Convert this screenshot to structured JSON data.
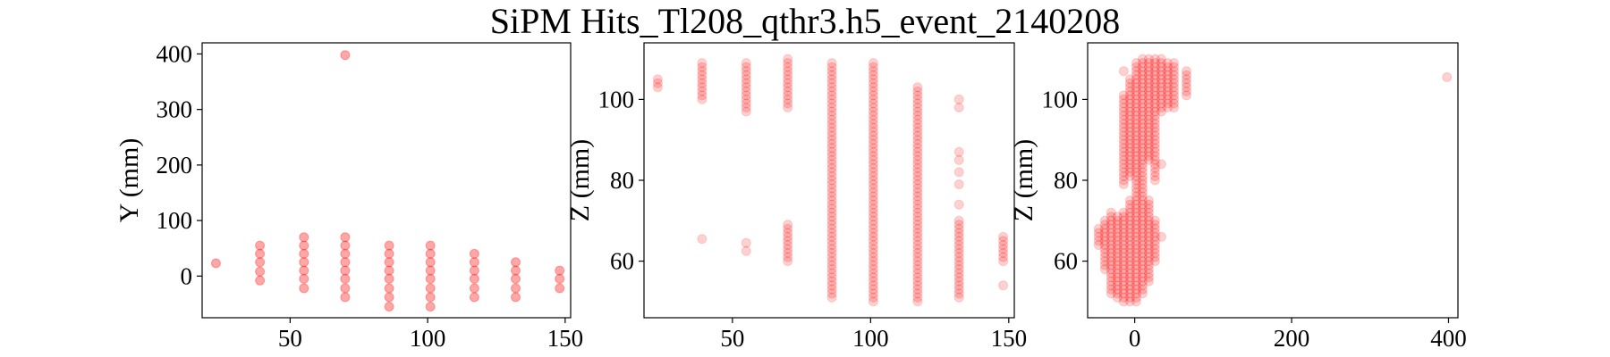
{
  "chart_data": {
    "title": "SiPM Hits_Tl208_qthr3.h5_event_2140208",
    "marker_color": "#ff0000",
    "panels": [
      {
        "type": "scatter",
        "xlabel": "",
        "ylabel": "Y (mm)",
        "xlim": [
          18,
          152
        ],
        "ylim": [
          -75,
          420
        ],
        "xticks": [
          50,
          100,
          150
        ],
        "yticks": [
          0,
          100,
          200,
          300,
          400
        ],
        "alpha": 0.35,
        "points": [
          [
            23,
            23
          ],
          [
            39,
            55
          ],
          [
            39,
            40
          ],
          [
            39,
            25
          ],
          [
            39,
            8
          ],
          [
            39,
            -8
          ],
          [
            55,
            70
          ],
          [
            55,
            55
          ],
          [
            55,
            40
          ],
          [
            55,
            25
          ],
          [
            55,
            10
          ],
          [
            55,
            -5
          ],
          [
            55,
            -22
          ],
          [
            70,
            398
          ],
          [
            70,
            70
          ],
          [
            70,
            55
          ],
          [
            70,
            40
          ],
          [
            70,
            25
          ],
          [
            70,
            10
          ],
          [
            70,
            -5
          ],
          [
            70,
            -22
          ],
          [
            70,
            -38
          ],
          [
            86,
            55
          ],
          [
            86,
            40
          ],
          [
            86,
            25
          ],
          [
            86,
            10
          ],
          [
            86,
            -5
          ],
          [
            86,
            -22
          ],
          [
            86,
            -38
          ],
          [
            86,
            -55
          ],
          [
            101,
            55
          ],
          [
            101,
            40
          ],
          [
            101,
            25
          ],
          [
            101,
            10
          ],
          [
            101,
            -5
          ],
          [
            101,
            -22
          ],
          [
            101,
            -38
          ],
          [
            101,
            -55
          ],
          [
            117,
            40
          ],
          [
            117,
            25
          ],
          [
            117,
            10
          ],
          [
            117,
            -5
          ],
          [
            117,
            -22
          ],
          [
            117,
            -38
          ],
          [
            132,
            25
          ],
          [
            132,
            10
          ],
          [
            132,
            -5
          ],
          [
            132,
            -22
          ],
          [
            132,
            -38
          ],
          [
            148,
            10
          ],
          [
            148,
            -5
          ],
          [
            148,
            -22
          ]
        ]
      },
      {
        "type": "scatter",
        "xlabel": "",
        "ylabel": "Z (mm)",
        "xlim": [
          18,
          152
        ],
        "ylim": [
          46,
          114
        ],
        "xticks": [
          50,
          100,
          150
        ],
        "yticks": [
          60,
          80,
          100
        ],
        "alpha": 0.18,
        "columns": [
          {
            "x": 23,
            "ranges": [
              [
                103,
                105
              ]
            ]
          },
          {
            "x": 39,
            "ranges": [
              [
                100,
                109
              ]
            ],
            "extra": [
              65.5
            ]
          },
          {
            "x": 55,
            "ranges": [
              [
                97,
                109
              ]
            ],
            "extra": [
              64.5,
              62.5
            ]
          },
          {
            "x": 70,
            "ranges": [
              [
                98,
                110
              ],
              [
                60,
                69
              ]
            ]
          },
          {
            "x": 86,
            "ranges": [
              [
                51,
                109
              ]
            ]
          },
          {
            "x": 101,
            "ranges": [
              [
                50,
                109
              ]
            ]
          },
          {
            "x": 117,
            "ranges": [
              [
                50,
                103
              ]
            ]
          },
          {
            "x": 132,
            "ranges": [
              [
                51,
                70
              ]
            ],
            "extra": [
              100,
              98,
              87,
              85,
              82,
              79,
              74
            ]
          },
          {
            "x": 148,
            "ranges": [
              [
                60,
                66
              ]
            ],
            "extra": [
              54
            ]
          }
        ]
      },
      {
        "type": "scatter",
        "xlabel": "",
        "ylabel": "Z (mm)",
        "xlim": [
          -60,
          412
        ],
        "ylim": [
          46,
          114
        ],
        "xticks": [
          0,
          200,
          400
        ],
        "yticks": [
          60,
          80,
          100
        ],
        "alpha": 0.18,
        "columns": [
          {
            "x": -46,
            "ranges": [
              [
                64,
                68
              ]
            ]
          },
          {
            "x": -38,
            "ranges": [
              [
                58,
                70
              ]
            ]
          },
          {
            "x": -30,
            "ranges": [
              [
                52,
                72
              ]
            ]
          },
          {
            "x": -22,
            "ranges": [
              [
                51,
                71
              ]
            ]
          },
          {
            "x": -14,
            "ranges": [
              [
                50,
                72
              ],
              [
                79,
                101
              ]
            ],
            "extra": [
              107
            ]
          },
          {
            "x": -6,
            "ranges": [
              [
                50,
                75
              ],
              [
                81,
                105
              ]
            ]
          },
          {
            "x": 2,
            "ranges": [
              [
                50,
                109
              ]
            ]
          },
          {
            "x": 10,
            "ranges": [
              [
                52,
                110
              ]
            ]
          },
          {
            "x": 18,
            "ranges": [
              [
                55,
                75
              ],
              [
                85,
                110
              ]
            ]
          },
          {
            "x": 26,
            "ranges": [
              [
                60,
                70
              ],
              [
                80,
                110
              ]
            ]
          },
          {
            "x": 34,
            "ranges": [
              [
                97,
                110
              ]
            ],
            "extra": [
              66,
              84
            ]
          },
          {
            "x": 42,
            "ranges": [
              [
                98,
                109
              ]
            ]
          },
          {
            "x": 50,
            "ranges": [
              [
                98,
                109
              ]
            ]
          },
          {
            "x": 66,
            "ranges": [
              [
                101,
                107
              ]
            ]
          },
          {
            "x": 398,
            "ranges": [],
            "extra": [
              105.5
            ]
          }
        ]
      }
    ]
  }
}
